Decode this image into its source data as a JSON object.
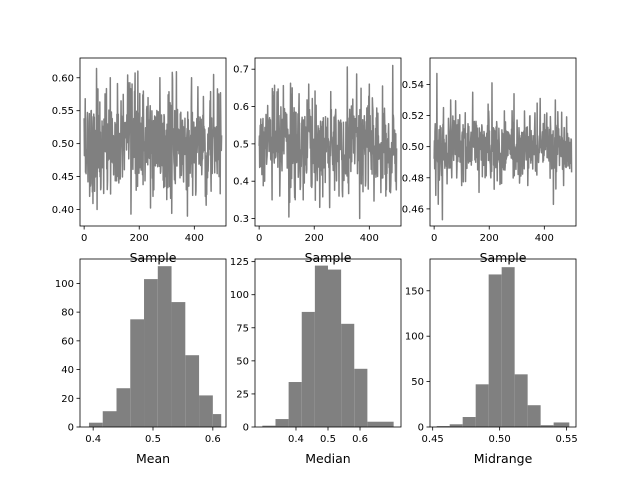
{
  "chart_data": [
    {
      "type": "line",
      "xlabel": "Sample",
      "xlim": [
        -15,
        515
      ],
      "ylim": [
        0.375,
        0.63
      ],
      "xticks": [
        0,
        200,
        400
      ],
      "yticks": [
        0.4,
        0.45,
        0.5,
        0.55,
        0.6
      ],
      "n_points": 500,
      "color": "#808080",
      "mean": 0.5,
      "sd": 0.04,
      "min": 0.392,
      "max": 0.614,
      "spikes": [
        [
          20,
          0.42
        ],
        [
          45,
          0.614
        ],
        [
          60,
          0.43
        ],
        [
          95,
          0.6
        ],
        [
          120,
          0.45
        ],
        [
          170,
          0.393
        ],
        [
          195,
          0.61
        ],
        [
          250,
          0.42
        ],
        [
          275,
          0.6
        ],
        [
          300,
          0.415
        ],
        [
          375,
          0.39
        ],
        [
          390,
          0.6
        ],
        [
          440,
          0.42
        ],
        [
          470,
          0.605
        ],
        [
          490,
          0.45
        ]
      ]
    },
    {
      "type": "line",
      "xlabel": "Sample",
      "xlim": [
        -15,
        515
      ],
      "ylim": [
        0.28,
        0.73
      ],
      "xticks": [
        0,
        200,
        400
      ],
      "yticks": [
        0.3,
        0.4,
        0.5,
        0.6,
        0.7
      ],
      "n_points": 500,
      "color": "#808080",
      "mean": 0.5,
      "sd": 0.065,
      "min": 0.3,
      "max": 0.71,
      "spikes": [
        [
          20,
          0.4
        ],
        [
          50,
          0.64
        ],
        [
          75,
          0.36
        ],
        [
          120,
          0.65
        ],
        [
          160,
          0.35
        ],
        [
          180,
          0.66
        ],
        [
          220,
          0.33
        ],
        [
          260,
          0.64
        ],
        [
          290,
          0.36
        ],
        [
          340,
          0.62
        ],
        [
          365,
          0.3
        ],
        [
          400,
          0.66
        ],
        [
          460,
          0.36
        ],
        [
          485,
          0.71
        ],
        [
          495,
          0.4
        ]
      ]
    },
    {
      "type": "line",
      "xlabel": "Sample",
      "xlim": [
        -15,
        515
      ],
      "ylim": [
        0.449,
        0.557
      ],
      "xticks": [
        0,
        200,
        400
      ],
      "yticks": [
        0.46,
        0.48,
        0.5,
        0.52,
        0.54
      ],
      "n_points": 500,
      "color": "#808080",
      "mean": 0.5,
      "sd": 0.011,
      "min": 0.453,
      "max": 0.547,
      "spikes": [
        [
          10,
          0.547
        ],
        [
          15,
          0.463
        ],
        [
          30,
          0.453
        ],
        [
          60,
          0.53
        ],
        [
          100,
          0.475
        ],
        [
          140,
          0.535
        ],
        [
          185,
          0.48
        ],
        [
          210,
          0.541
        ],
        [
          240,
          0.477
        ],
        [
          255,
          0.523
        ],
        [
          290,
          0.534
        ],
        [
          340,
          0.475
        ],
        [
          385,
          0.531
        ],
        [
          440,
          0.53
        ],
        [
          470,
          0.475
        ]
      ]
    },
    {
      "type": "bar",
      "xlabel": "Mean",
      "xlim": [
        0.378,
        0.622
      ],
      "ylim": [
        0,
        117
      ],
      "xticks": [
        0.4,
        0.5,
        0.6
      ],
      "yticks": [
        0,
        20,
        40,
        60,
        80,
        100
      ],
      "bin_edges": [
        0.393,
        0.416,
        0.439,
        0.462,
        0.485,
        0.508,
        0.531,
        0.554,
        0.577,
        0.6,
        0.614
      ],
      "values": [
        3,
        11,
        27,
        75,
        103,
        112,
        87,
        50,
        22,
        9
      ],
      "color": "#808080"
    },
    {
      "type": "bar",
      "xlabel": "Median",
      "xlim": [
        0.272,
        0.728
      ],
      "ylim": [
        0,
        127
      ],
      "xticks": [
        0.4,
        0.5,
        0.6
      ],
      "yticks": [
        0,
        25,
        50,
        75,
        100,
        125
      ],
      "bin_edges": [
        0.295,
        0.336,
        0.377,
        0.418,
        0.459,
        0.5,
        0.541,
        0.582,
        0.623,
        0.664,
        0.705
      ],
      "values": [
        1,
        6,
        34,
        87,
        122,
        119,
        78,
        44,
        4,
        4
      ],
      "color": "#808080"
    },
    {
      "type": "bar",
      "xlabel": "Midrange",
      "xlim": [
        0.448,
        0.557
      ],
      "ylim": [
        0,
        185
      ],
      "xticks": [
        0.45,
        0.5,
        0.55
      ],
      "yticks": [
        0,
        50,
        100,
        150
      ],
      "bin_edges": [
        0.453,
        0.4627,
        0.4724,
        0.4821,
        0.4918,
        0.5015,
        0.5112,
        0.5209,
        0.5306,
        0.5403,
        0.552
      ],
      "values": [
        1,
        3,
        11,
        47,
        168,
        176,
        58,
        24,
        2,
        5
      ],
      "color": "#808080"
    }
  ]
}
